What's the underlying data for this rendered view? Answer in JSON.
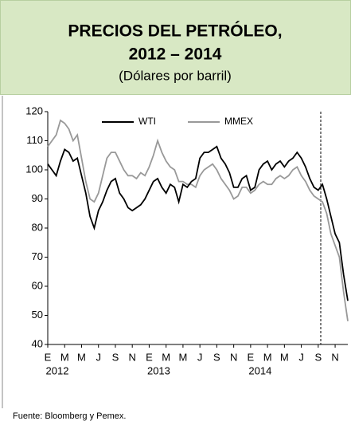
{
  "chart_data": {
    "type": "line",
    "title": [
      "PRECIOS DEL PETRÓLEO,",
      "2012 – 2014"
    ],
    "subtitle": "(Dólares por barril)",
    "source": "Fuente: Bloomberg y Pemex.",
    "categories": [
      "E",
      null,
      null,
      null,
      "M",
      null,
      null,
      null,
      "M",
      null,
      null,
      null,
      "J",
      null,
      null,
      null,
      "S",
      null,
      null,
      null,
      "N",
      null,
      null,
      null,
      "E",
      null,
      null,
      null,
      "M",
      null,
      null,
      null,
      "M",
      null,
      null,
      null,
      "J",
      null,
      null,
      null,
      "S",
      null,
      null,
      null,
      "N",
      null,
      null,
      null,
      "E",
      null,
      null,
      null,
      "M",
      null,
      null,
      null,
      "M",
      null,
      null,
      null,
      "J",
      null,
      null,
      null,
      "S",
      null,
      null,
      null,
      "N",
      null,
      null,
      null
    ],
    "years": [
      "2012",
      "2013",
      "2014"
    ],
    "ylim": [
      40,
      120
    ],
    "yticks": [
      40,
      50,
      60,
      70,
      80,
      90,
      100,
      110,
      120
    ],
    "series": [
      {
        "name": "WTI",
        "color": "#000000",
        "values": [
          102,
          100,
          98,
          103,
          107,
          106,
          103,
          104,
          98,
          92,
          84,
          80,
          86,
          89,
          93,
          96,
          97,
          92,
          90,
          87,
          86,
          87,
          88,
          90,
          93,
          96,
          97,
          94,
          92,
          95,
          94,
          89,
          95,
          94,
          96,
          97,
          104,
          106,
          106,
          107,
          108,
          104,
          102,
          99,
          94,
          94,
          97,
          98,
          93,
          94,
          100,
          102,
          103,
          100,
          102,
          103,
          101,
          103,
          104,
          106,
          104,
          101,
          97,
          94,
          93,
          95,
          90,
          84,
          78,
          75,
          64,
          55
        ]
      },
      {
        "name": "MMEX",
        "color": "#999999",
        "values": [
          108,
          110,
          112,
          117,
          116,
          114,
          110,
          112,
          104,
          96,
          90,
          89,
          92,
          98,
          104,
          106,
          106,
          103,
          100,
          98,
          98,
          97,
          99,
          98,
          101,
          105,
          110,
          106,
          103,
          101,
          100,
          96,
          96,
          95,
          95,
          94,
          98,
          100,
          101,
          102,
          100,
          97,
          95,
          93,
          90,
          91,
          94,
          94,
          92,
          93,
          95,
          96,
          95,
          95,
          97,
          98,
          97,
          98,
          100,
          101,
          98,
          96,
          93,
          91,
          90,
          89,
          85,
          78,
          74,
          70,
          58,
          48
        ]
      }
    ]
  }
}
